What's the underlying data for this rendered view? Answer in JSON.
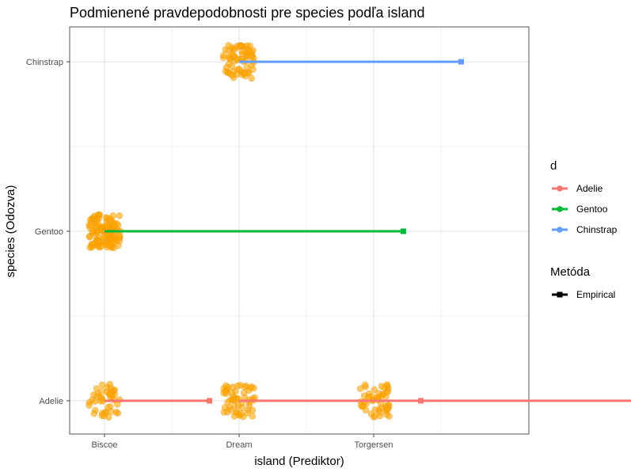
{
  "chart_data": {
    "type": "scatter",
    "title": "Podmienené pravdepodobnosti pre species podľa island",
    "xlabel": "island (Prediktor)",
    "ylabel": "species (Odozva)",
    "x_categories": [
      "Biscoe",
      "Dream",
      "Torgersen"
    ],
    "y_categories": [
      "Adelie",
      "Gentoo",
      "Chinstrap"
    ],
    "grid": true,
    "legend_position": "right",
    "point_color": "#FFA500",
    "jitter_points": [
      {
        "island": "Biscoe",
        "species": "Adelie",
        "count": 44
      },
      {
        "island": "Biscoe",
        "species": "Gentoo",
        "count": 124
      },
      {
        "island": "Dream",
        "species": "Adelie",
        "count": 56
      },
      {
        "island": "Dream",
        "species": "Chinstrap",
        "count": 68
      },
      {
        "island": "Torgersen",
        "species": "Adelie",
        "count": 52
      }
    ],
    "probability_segments": [
      {
        "island": "Biscoe",
        "species": "Adelie",
        "value": 0.26
      },
      {
        "island": "Biscoe",
        "species": "Gentoo",
        "value": 0.74
      },
      {
        "island": "Dream",
        "species": "Adelie",
        "value": 0.45
      },
      {
        "island": "Dream",
        "species": "Chinstrap",
        "value": 0.55
      },
      {
        "island": "Torgersen",
        "species": "Adelie",
        "value": 1.0
      }
    ],
    "legend_d": {
      "title": "d",
      "items": [
        {
          "label": "Adelie",
          "color": "#F8766D"
        },
        {
          "label": "Gentoo",
          "color": "#00BA38"
        },
        {
          "label": "Chinstrap",
          "color": "#619CFF"
        }
      ]
    },
    "legend_method": {
      "title": "Metóda",
      "items": [
        {
          "label": "Empirical",
          "color": "#000000"
        }
      ]
    }
  }
}
